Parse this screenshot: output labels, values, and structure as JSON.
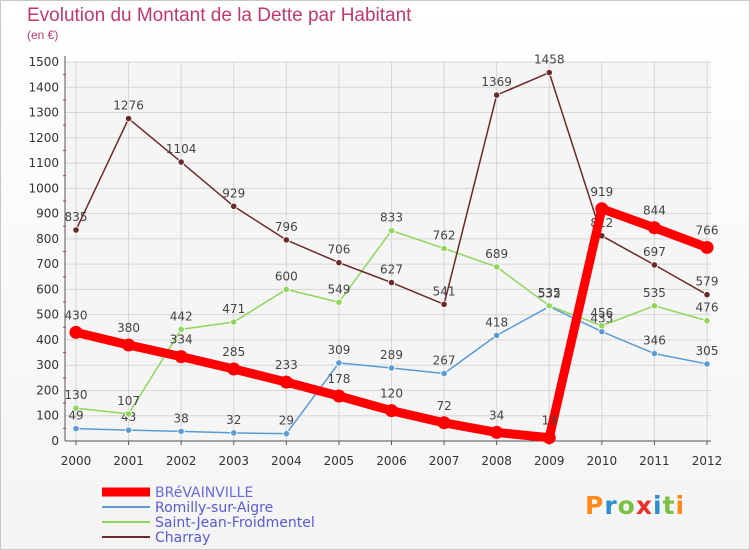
{
  "title": "Evolution du Montant de la Dette par Habitant",
  "subtitle": "(en €)",
  "logo": {
    "text": "Proxiti",
    "colors": [
      "#ff8a1a",
      "#2a8fd0",
      "#7ac043",
      "#e8332d",
      "#2a8fd0",
      "#7ac043",
      "#ff8a1a"
    ]
  },
  "chart_data": {
    "type": "line",
    "x": [
      "2000",
      "2001",
      "2002",
      "2003",
      "2004",
      "2005",
      "2006",
      "2007",
      "2008",
      "2009",
      "2010",
      "2011",
      "2012"
    ],
    "ylim": [
      0,
      1500
    ],
    "yticks": [
      0,
      100,
      200,
      300,
      400,
      500,
      600,
      700,
      800,
      900,
      1000,
      1100,
      1200,
      1300,
      1400,
      1500
    ],
    "grid": true,
    "legend_position": "bottom-left",
    "series": [
      {
        "name": "BRéVAINVILLE",
        "color": "#ff0000",
        "emphasis": true,
        "values": [
          430,
          380,
          334,
          285,
          233,
          178,
          120,
          72,
          34,
          13,
          919,
          844,
          766
        ]
      },
      {
        "name": "Romilly-sur-Aigre",
        "color": "#5a9bd5",
        "emphasis": false,
        "values": [
          49,
          43,
          38,
          32,
          29,
          309,
          289,
          267,
          418,
          532,
          433,
          346,
          305
        ]
      },
      {
        "name": "Saint-Jean-Froidmentel",
        "color": "#8fd65a",
        "emphasis": false,
        "values": [
          130,
          107,
          442,
          471,
          600,
          549,
          833,
          762,
          689,
          535,
          456,
          535,
          476
        ]
      },
      {
        "name": "Charray",
        "color": "#6b2a2a",
        "emphasis": false,
        "values": [
          835,
          1276,
          1104,
          929,
          796,
          706,
          627,
          541,
          1369,
          1458,
          812,
          697,
          579
        ]
      }
    ]
  }
}
